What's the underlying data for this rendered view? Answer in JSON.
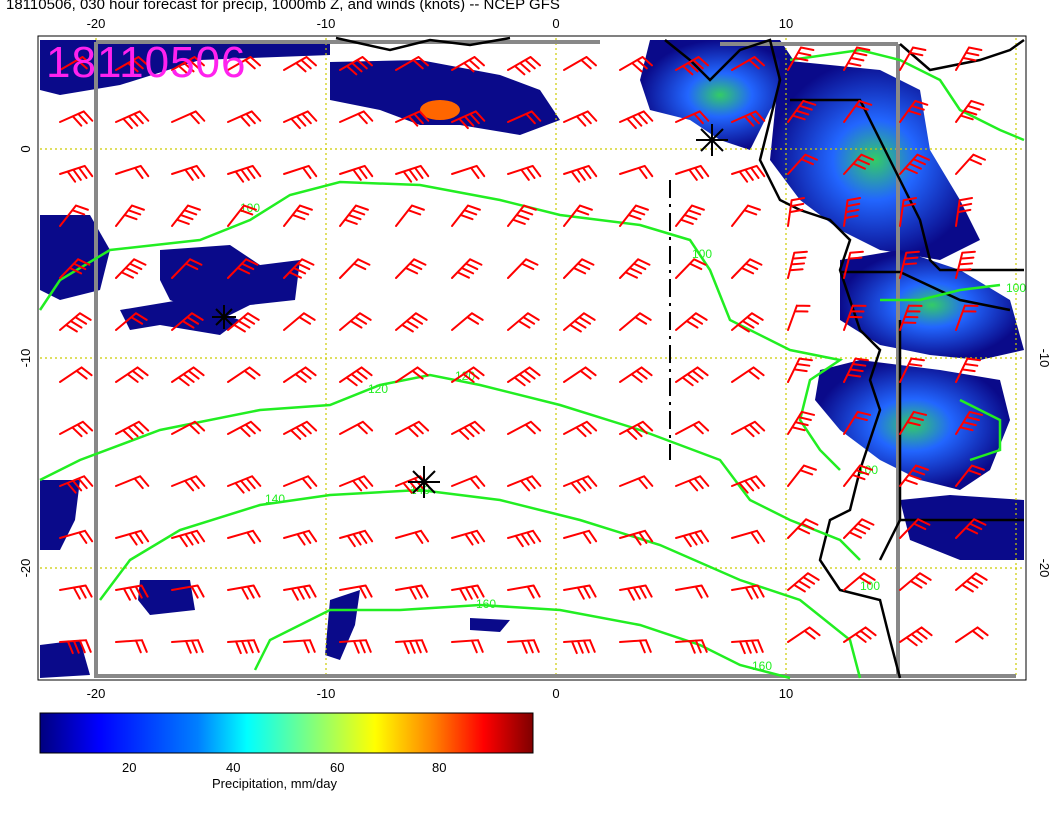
{
  "title": "18110506, 030 hour forecast for precip, 1000mb Z, and winds (knots) -- NCEP GFS",
  "stamp": "18110506",
  "axes": {
    "x_ticks": [
      "-20",
      "-10",
      "0",
      "10"
    ],
    "y_ticks_left": [
      "0",
      "-10",
      "-20"
    ],
    "y_ticks_right": [
      "-10",
      "-20"
    ]
  },
  "contours": {
    "color": "#22ee22",
    "labels": [
      "100",
      "100",
      "100",
      "120",
      "120",
      "140",
      "140",
      "160",
      "160",
      "100",
      "100"
    ]
  },
  "colorbar": {
    "ticks": [
      "20",
      "40",
      "60",
      "80"
    ],
    "label": "Precipitation, mm/day",
    "colors": [
      "#00007f",
      "#0000ff",
      "#007fff",
      "#00ffff",
      "#7fff7f",
      "#ffff00",
      "#ff7f00",
      "#ff0000",
      "#7f0000"
    ]
  },
  "colors": {
    "wind_barbs": "#ff0000",
    "coast": "#000000",
    "grid": "#cccc00",
    "box": "#888888"
  }
}
